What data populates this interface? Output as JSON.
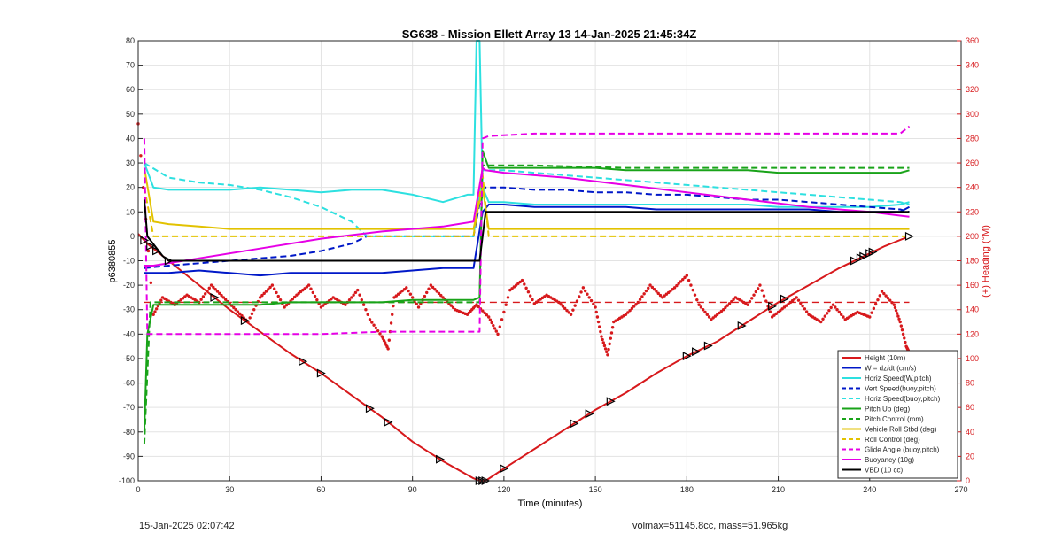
{
  "chart_data": {
    "type": "line",
    "title": "SG638 - Mission Ellett Array 13 14-Jan-2025 21:45:34Z",
    "xlabel": "Time (minutes)",
    "ylabel": "p6380855",
    "y2label": "(+) Heading (°M)",
    "xlim": [
      0,
      270
    ],
    "ylim": [
      -100,
      80
    ],
    "y2lim": [
      0,
      360
    ],
    "xticks": [
      0,
      30,
      60,
      90,
      120,
      150,
      180,
      210,
      240,
      270
    ],
    "yticks": [
      -100,
      -90,
      -80,
      -70,
      -60,
      -50,
      -40,
      -30,
      -20,
      -10,
      0,
      10,
      20,
      30,
      40,
      50,
      60,
      70,
      80
    ],
    "y2ticks": [
      0,
      20,
      40,
      60,
      80,
      100,
      120,
      140,
      160,
      180,
      200,
      220,
      240,
      260,
      280,
      300,
      320,
      340,
      360
    ],
    "grid": true,
    "legend_position": "bottom-right",
    "series": [
      {
        "name": "Height (10m)",
        "color": "#d7191c",
        "style": "solid",
        "x": [
          0,
          3,
          10,
          20,
          30,
          40,
          50,
          60,
          70,
          80,
          90,
          100,
          110,
          112,
          114,
          120,
          130,
          140,
          150,
          160,
          170,
          180,
          190,
          200,
          210,
          220,
          230,
          240,
          245,
          253
        ],
        "y": [
          1,
          -3,
          -10,
          -20,
          -30,
          -39,
          -48,
          -56,
          -65,
          -74,
          -84,
          -92,
          -99,
          -100,
          -100,
          -95,
          -87,
          -79,
          -71,
          -64,
          -56,
          -49,
          -43,
          -35,
          -27,
          -20,
          -13,
          -7,
          -4,
          0
        ]
      },
      {
        "name": "W = dz/dt (cm/s)",
        "color": "#0018c8",
        "style": "solid",
        "x": [
          2,
          10,
          20,
          30,
          40,
          50,
          60,
          70,
          80,
          90,
          100,
          110,
          113,
          115,
          120,
          130,
          140,
          150,
          160,
          170,
          180,
          190,
          200,
          210,
          220,
          230,
          240,
          250,
          253
        ],
        "y": [
          -15,
          -15,
          -14,
          -15,
          -16,
          -15,
          -15,
          -15,
          -15,
          -14,
          -13,
          -13,
          10,
          13,
          13,
          12,
          12,
          12,
          12,
          11,
          11,
          11,
          11,
          11,
          11,
          10,
          10,
          10,
          12
        ]
      },
      {
        "name": "Horiz Speed(W,pitch)",
        "color": "#2de0e0",
        "style": "solid",
        "x": [
          2,
          5,
          10,
          20,
          30,
          40,
          50,
          60,
          70,
          80,
          90,
          100,
          108,
          110,
          111,
          112,
          113,
          115,
          120,
          130,
          140,
          150,
          160,
          170,
          180,
          190,
          200,
          210,
          220,
          230,
          240,
          250,
          253
        ],
        "y": [
          30,
          20,
          19,
          19,
          19,
          20,
          19,
          18,
          19,
          19,
          17,
          14,
          17,
          17,
          80,
          80,
          20,
          14,
          14,
          13,
          13,
          13,
          13,
          13,
          13,
          13,
          13,
          12,
          12,
          12,
          12,
          13,
          14
        ]
      },
      {
        "name": "Vert Speed(buoy,pitch)",
        "color": "#0018c8",
        "style": "dashed",
        "x": [
          2,
          10,
          20,
          30,
          40,
          50,
          60,
          70,
          75,
          80,
          90,
          100,
          110,
          113,
          114,
          120,
          130,
          140,
          150,
          160,
          170,
          180,
          190,
          200,
          210,
          220,
          230,
          240,
          250,
          253
        ],
        "y": [
          -13,
          -12,
          -11,
          -10,
          -9,
          -8,
          -6,
          -3,
          0,
          0,
          0,
          0,
          0,
          20,
          20,
          20,
          19,
          19,
          18,
          18,
          17,
          17,
          16,
          15,
          15,
          14,
          13,
          12,
          11,
          10
        ]
      },
      {
        "name": "Horiz Speed(buoy,pitch)",
        "color": "#2de0e0",
        "style": "dashed",
        "x": [
          2,
          10,
          20,
          30,
          40,
          50,
          60,
          70,
          75,
          80,
          90,
          100,
          110,
          113,
          114,
          120,
          130,
          140,
          150,
          160,
          170,
          180,
          190,
          200,
          210,
          220,
          230,
          240,
          250,
          253
        ],
        "y": [
          30,
          24,
          22,
          21,
          19,
          16,
          12,
          6,
          0,
          0,
          0,
          0,
          0,
          27,
          27,
          27,
          26,
          25,
          24,
          23,
          22,
          21,
          20,
          19,
          18,
          17,
          16,
          15,
          14,
          13
        ]
      },
      {
        "name": "Pitch Up (deg)",
        "color": "#19a319",
        "style": "solid",
        "x": [
          2,
          3,
          5,
          10,
          20,
          30,
          40,
          50,
          60,
          70,
          80,
          90,
          100,
          110,
          112,
          113,
          115,
          120,
          130,
          140,
          150,
          160,
          170,
          180,
          190,
          200,
          210,
          220,
          230,
          240,
          250,
          253
        ],
        "y": [
          -80,
          -40,
          -28,
          -28,
          -28,
          -28,
          -28,
          -27,
          -27,
          -27,
          -27,
          -26,
          -26,
          -26,
          -25,
          35,
          28,
          28,
          28,
          28,
          28,
          27,
          27,
          27,
          27,
          27,
          26,
          26,
          26,
          26,
          26,
          27
        ]
      },
      {
        "name": "Pitch Control (mm)",
        "color": "#19a319",
        "style": "dashed",
        "x": [
          2,
          4,
          10,
          50,
          100,
          112,
          113,
          115,
          130,
          160,
          200,
          230,
          253
        ],
        "y": [
          -85,
          -27,
          -27,
          -27,
          -27,
          -27,
          29,
          29,
          29,
          28,
          28,
          28,
          28
        ]
      },
      {
        "name": "Vehicle Roll Stbd (deg)",
        "color": "#e2c200",
        "style": "solid",
        "x": [
          2,
          5,
          10,
          20,
          30,
          40,
          50,
          60,
          70,
          80,
          90,
          100,
          110,
          113,
          115,
          120,
          130,
          140,
          150,
          160,
          170,
          180,
          190,
          200,
          210,
          220,
          230,
          240,
          250,
          253
        ],
        "y": [
          28,
          6,
          5,
          4,
          3,
          3,
          3,
          3,
          3,
          3,
          3,
          3,
          3,
          20,
          3,
          3,
          3,
          3,
          3,
          3,
          3,
          3,
          3,
          3,
          3,
          3,
          3,
          3,
          3,
          3
        ]
      },
      {
        "name": "Roll Control (deg)",
        "color": "#e2c200",
        "style": "dashed",
        "x": [
          2,
          5,
          10,
          30,
          50,
          70,
          90,
          110,
          113,
          115,
          130,
          150,
          170,
          190,
          210,
          230,
          253
        ],
        "y": [
          20,
          0,
          0,
          0,
          0,
          0,
          0,
          0,
          25,
          0,
          0,
          0,
          0,
          0,
          0,
          0,
          0
        ]
      },
      {
        "name": "Glide Angle (buoy,pitch)",
        "color": "#e600e6",
        "style": "dashed",
        "x": [
          2,
          3,
          5,
          20,
          40,
          60,
          80,
          100,
          110,
          112,
          113,
          115,
          130,
          150,
          170,
          190,
          210,
          230,
          250,
          253
        ],
        "y": [
          40,
          -40,
          -40,
          -40,
          -40,
          -40,
          -39,
          -39,
          -39,
          -39,
          40,
          41,
          42,
          42,
          42,
          42,
          42,
          42,
          42,
          45
        ]
      },
      {
        "name": "Buoyancy (10g)",
        "color": "#e600e6",
        "style": "solid",
        "x": [
          2,
          5,
          10,
          20,
          40,
          60,
          80,
          100,
          110,
          113,
          114,
          120,
          140,
          160,
          180,
          200,
          220,
          240,
          253
        ],
        "y": [
          -12,
          -12,
          -11,
          -9,
          -5,
          -1,
          2,
          4,
          6,
          28,
          27,
          26,
          24,
          21,
          18,
          15,
          12,
          10,
          8
        ]
      },
      {
        "name": "VBD (10 cc)",
        "color": "#000000",
        "style": "solid",
        "x": [
          2,
          3,
          8,
          10,
          30,
          60,
          90,
          110,
          112,
          114,
          130,
          160,
          200,
          240,
          253
        ],
        "y": [
          15,
          0,
          -8,
          -10,
          -10,
          -10,
          -10,
          -10,
          -10,
          10,
          10,
          10,
          10,
          10,
          10
        ]
      }
    ],
    "heading": {
      "name": "(+) Heading (°M)",
      "color": "#d7191c",
      "mean": 146,
      "points": [
        [
          0,
          292
        ],
        [
          5,
          136
        ],
        [
          8,
          150
        ],
        [
          12,
          144
        ],
        [
          16,
          152
        ],
        [
          20,
          146
        ],
        [
          24,
          160
        ],
        [
          28,
          150
        ],
        [
          32,
          140
        ],
        [
          36,
          130
        ],
        [
          40,
          150
        ],
        [
          44,
          160
        ],
        [
          48,
          142
        ],
        [
          52,
          152
        ],
        [
          56,
          160
        ],
        [
          60,
          142
        ],
        [
          64,
          150
        ],
        [
          68,
          144
        ],
        [
          72,
          156
        ],
        [
          76,
          132
        ],
        [
          80,
          118
        ],
        [
          82,
          108
        ],
        [
          84,
          150
        ],
        [
          88,
          158
        ],
        [
          92,
          142
        ],
        [
          96,
          160
        ],
        [
          100,
          150
        ],
        [
          104,
          140
        ],
        [
          108,
          136
        ],
        [
          111,
          144
        ],
        [
          115,
          134
        ],
        [
          118,
          120
        ],
        [
          122,
          156
        ],
        [
          126,
          164
        ],
        [
          130,
          145
        ],
        [
          134,
          152
        ],
        [
          138,
          146
        ],
        [
          142,
          136
        ],
        [
          146,
          158
        ],
        [
          150,
          142
        ],
        [
          152,
          118
        ],
        [
          154,
          103
        ],
        [
          156,
          130
        ],
        [
          160,
          136
        ],
        [
          164,
          146
        ],
        [
          168,
          160
        ],
        [
          172,
          150
        ],
        [
          176,
          158
        ],
        [
          180,
          168
        ],
        [
          184,
          144
        ],
        [
          188,
          132
        ],
        [
          192,
          140
        ],
        [
          196,
          150
        ],
        [
          200,
          144
        ],
        [
          204,
          160
        ],
        [
          208,
          134
        ],
        [
          212,
          142
        ],
        [
          216,
          150
        ],
        [
          220,
          136
        ],
        [
          224,
          130
        ],
        [
          228,
          144
        ],
        [
          232,
          132
        ],
        [
          236,
          138
        ],
        [
          240,
          134
        ],
        [
          244,
          155
        ],
        [
          248,
          144
        ],
        [
          250,
          130
        ],
        [
          252,
          110
        ],
        [
          253,
          105
        ]
      ]
    },
    "height_markers_x": [
      2,
      4,
      6,
      10,
      25,
      35,
      54,
      60,
      76,
      82,
      99,
      112,
      113,
      114,
      120,
      143,
      148,
      155,
      180,
      183,
      187,
      198,
      208,
      212,
      235,
      237,
      238,
      240,
      241
    ]
  },
  "footer": {
    "left": "15-Jan-2025 02:07:42",
    "right": "volmax=51145.8cc, mass=51.965kg"
  }
}
